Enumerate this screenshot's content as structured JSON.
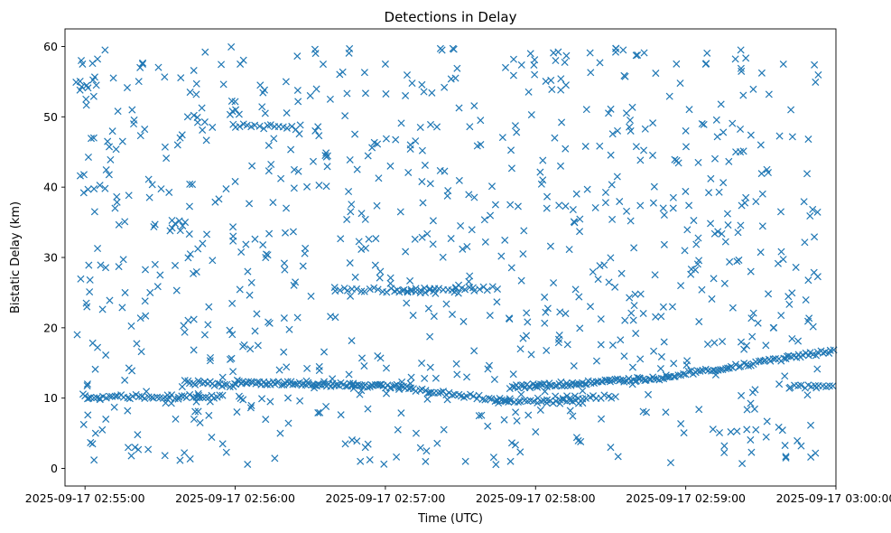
{
  "chart_data": {
    "type": "scatter",
    "title": "Detections in Delay",
    "xlabel": "Time (UTC)",
    "ylabel": "Bistatic Delay (km)",
    "xlim": [
      "2025-09-17 02:54:52",
      "2025-09-17 03:00:00"
    ],
    "ylim": [
      -2.5,
      62.5
    ],
    "xticks": [
      "2025-09-17 02:55:00",
      "2025-09-17 02:56:00",
      "2025-09-17 02:57:00",
      "2025-09-17 02:58:00",
      "2025-09-17 02:59:00",
      "2025-09-17 03:00:00"
    ],
    "yticks": [
      0,
      10,
      20,
      30,
      40,
      50,
      60
    ],
    "marker": "x",
    "color": "#1f77b4",
    "grid": false,
    "x_unit": "seconds after 2025-09-17 02:55:00",
    "x_range": [
      -4,
      293
    ],
    "tracks": [
      {
        "x": [
          0,
          56
        ],
        "y": [
          10.2,
          10.2
        ],
        "step": 1.2
      },
      {
        "x": [
          40,
          60
        ],
        "y": [
          12.3,
          11.8
        ],
        "step": 1.0
      },
      {
        "x": [
          60,
          130
        ],
        "y": [
          12.3,
          11.6
        ],
        "step": 0.8
      },
      {
        "x": [
          130,
          170
        ],
        "y": [
          11.2,
          9.6
        ],
        "step": 1.2
      },
      {
        "x": [
          165,
          200
        ],
        "y": [
          9.5,
          9.5
        ],
        "step": 1.3
      },
      {
        "x": [
          170,
          230
        ],
        "y": [
          11.6,
          12.8
        ],
        "step": 0.8
      },
      {
        "x": [
          230,
          305
        ],
        "y": [
          13.0,
          17.0
        ],
        "step": 1.0
      },
      {
        "x": [
          282,
          318
        ],
        "y": [
          11.5,
          12.2
        ],
        "step": 1.4
      },
      {
        "x": [
          188,
          212
        ],
        "y": [
          10.0,
          10.2
        ],
        "step": 1.5
      },
      {
        "x": [
          60,
          85
        ],
        "y": [
          48.8,
          48.4
        ],
        "step": 1.6
      },
      {
        "x": [
          100,
          140
        ],
        "y": [
          25.5,
          25.2
        ],
        "step": 1.7
      },
      {
        "x": [
          125,
          165
        ],
        "y": [
          25.3,
          25.6
        ],
        "step": 1.8
      }
    ],
    "noise": {
      "count": 740,
      "seed": 20250917,
      "y": [
        0.5,
        60
      ]
    },
    "sampled_points": [
      [
        -2.0,
        53.8
      ],
      [
        -1.5,
        58.0
      ],
      [
        -1.0,
        57.5
      ],
      [
        -0.5,
        39.2
      ],
      [
        3.0,
        57.6
      ],
      [
        4.5,
        54.5
      ],
      [
        8.0,
        59.5
      ],
      [
        9.0,
        46.5
      ],
      [
        3.5,
        47.0
      ],
      [
        0.5,
        23.5
      ],
      [
        1.0,
        12.0
      ],
      [
        1.5,
        28.9
      ],
      [
        2.0,
        26.8
      ],
      [
        3.0,
        3.5
      ],
      [
        3.6,
        1.2
      ],
      [
        4.2,
        5.0
      ],
      [
        5.0,
        17.2
      ],
      [
        6.0,
        9.8
      ],
      [
        8.0,
        39.8
      ],
      [
        12.0,
        37.0
      ],
      [
        13.5,
        28.7
      ],
      [
        15.0,
        46.5
      ],
      [
        16.0,
        25.0
      ],
      [
        17.0,
        8.2
      ],
      [
        20.0,
        3.0
      ],
      [
        21.0,
        4.8
      ],
      [
        22.0,
        57.0
      ],
      [
        23.0,
        57.5
      ],
      [
        24.0,
        23.8
      ],
      [
        26.0,
        25.0
      ],
      [
        28.0,
        29.0
      ],
      [
        30.0,
        27.5
      ],
      [
        32.0,
        45.7
      ],
      [
        34.0,
        33.8
      ],
      [
        36.0,
        34.8
      ],
      [
        37.0,
        46.0
      ],
      [
        38.0,
        47.0
      ],
      [
        39.0,
        34.5
      ],
      [
        40.0,
        35.0
      ],
      [
        41.0,
        50.0
      ],
      [
        42.0,
        53.5
      ],
      [
        43.5,
        50.2
      ],
      [
        45.0,
        49.2
      ],
      [
        48.0,
        59.2
      ],
      [
        50.0,
        9.5
      ],
      [
        55.0,
        3.5
      ],
      [
        58.0,
        15.5
      ],
      [
        60.0,
        40.8
      ],
      [
        62.0,
        57.5
      ],
      [
        65.0,
        28.0
      ],
      [
        66.0,
        17.0
      ],
      [
        70.0,
        54.5
      ],
      [
        72.0,
        50.5
      ],
      [
        74.0,
        9.5
      ],
      [
        78.0,
        5.0
      ],
      [
        80.0,
        33.5
      ],
      [
        84.0,
        26.5
      ],
      [
        88.0,
        31.3
      ],
      [
        90.0,
        53.0
      ],
      [
        92.0,
        48.0
      ],
      [
        96.0,
        44.5
      ],
      [
        98.0,
        52.5
      ],
      [
        100.0,
        21.5
      ],
      [
        104.0,
        3.5
      ],
      [
        106.0,
        24.5
      ],
      [
        108.0,
        27.2
      ],
      [
        110.0,
        1.0
      ],
      [
        112.0,
        3.0
      ],
      [
        116.0,
        28.9
      ],
      [
        118.0,
        28.0
      ],
      [
        120.0,
        57.5
      ],
      [
        122.0,
        43.0
      ],
      [
        125.0,
        5.5
      ],
      [
        128.0,
        53.0
      ],
      [
        130.0,
        46.0
      ],
      [
        134.0,
        48.5
      ],
      [
        138.0,
        40.5
      ],
      [
        142.0,
        59.7
      ],
      [
        145.0,
        39.5
      ],
      [
        148.0,
        55.5
      ],
      [
        150.0,
        34.5
      ],
      [
        152.0,
        1.0
      ],
      [
        155.0,
        25.7
      ],
      [
        158.0,
        49.5
      ],
      [
        160.0,
        32.2
      ],
      [
        164.0,
        37.5
      ],
      [
        168.0,
        57.0
      ],
      [
        170.0,
        1.0
      ],
      [
        172.0,
        8.0
      ],
      [
        175.0,
        30.5
      ],
      [
        178.0,
        59.0
      ],
      [
        180.0,
        5.2
      ],
      [
        182.0,
        8.3
      ],
      [
        184.0,
        22.2
      ],
      [
        186.0,
        31.6
      ],
      [
        188.0,
        58.0
      ],
      [
        190.0,
        43.0
      ],
      [
        192.0,
        37.3
      ],
      [
        195.0,
        36.8
      ],
      [
        198.0,
        3.8
      ],
      [
        200.0,
        45.8
      ],
      [
        202.0,
        56.3
      ],
      [
        205.0,
        26.9
      ],
      [
        208.0,
        37.8
      ],
      [
        210.0,
        3.0
      ],
      [
        212.0,
        59.2
      ],
      [
        215.0,
        59.5
      ],
      [
        218.0,
        35.2
      ],
      [
        220.0,
        19.2
      ],
      [
        222.0,
        24.8
      ],
      [
        225.0,
        10.5
      ],
      [
        228.0,
        56.2
      ],
      [
        230.0,
        14.2
      ],
      [
        232.0,
        8.0
      ],
      [
        235.0,
        37.0
      ],
      [
        238.0,
        26.0
      ],
      [
        240.0,
        48.0
      ],
      [
        242.0,
        27.6
      ],
      [
        245.0,
        43.5
      ],
      [
        248.0,
        57.5
      ],
      [
        250.0,
        41.2
      ],
      [
        252.0,
        13.3
      ],
      [
        255.0,
        47.8
      ],
      [
        258.0,
        5.2
      ],
      [
        260.0,
        45.0
      ],
      [
        262.0,
        59.5
      ],
      [
        264.0,
        38.5
      ],
      [
        266.0,
        28.0
      ],
      [
        268.0,
        5.5
      ],
      [
        270.0,
        46.0
      ],
      [
        272.0,
        17.5
      ],
      [
        275.0,
        20.0
      ],
      [
        278.0,
        36.5
      ],
      [
        280.0,
        1.5
      ],
      [
        282.0,
        51.0
      ]
    ]
  }
}
